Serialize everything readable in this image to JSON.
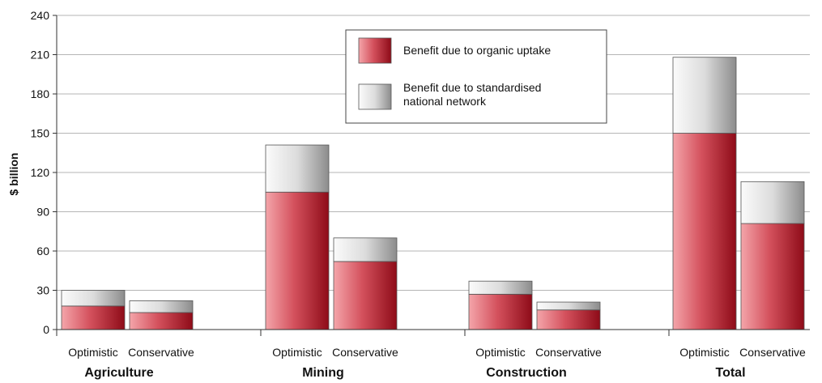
{
  "chart_data": {
    "type": "bar",
    "stacked": true,
    "ylabel": "$ billion",
    "ylim": [
      0,
      240
    ],
    "yticks": [
      0,
      30,
      60,
      90,
      120,
      150,
      180,
      210,
      240
    ],
    "grid": true,
    "legend_position": "top-center",
    "groups": [
      {
        "name": "Agriculture",
        "categories": [
          "Optimistic",
          "Conservative"
        ]
      },
      {
        "name": "Mining",
        "categories": [
          "Optimistic",
          "Conservative"
        ]
      },
      {
        "name": "Construction",
        "categories": [
          "Optimistic",
          "Conservative"
        ]
      },
      {
        "name": "Total",
        "categories": [
          "Optimistic",
          "Conservative"
        ]
      }
    ],
    "series": [
      {
        "name": "Benefit due to organic uptake",
        "color": "#c0303a",
        "values": [
          18,
          13,
          105,
          52,
          27,
          15,
          150,
          81
        ]
      },
      {
        "name": "Benefit due to standardised national network",
        "color": "#c8c8c8",
        "values": [
          12,
          9,
          36,
          18,
          10,
          6,
          58,
          32
        ]
      }
    ]
  }
}
